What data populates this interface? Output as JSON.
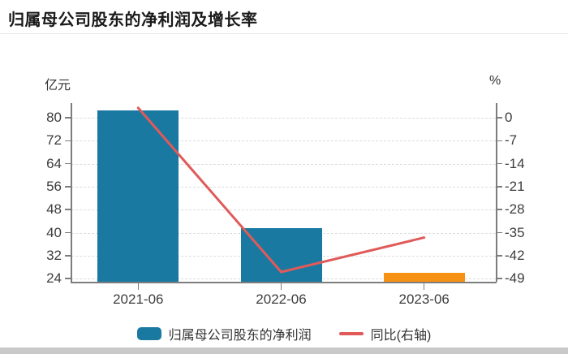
{
  "page": {
    "title": "归属母公司股东的净利润及增长率"
  },
  "colors": {
    "bar_blue": "#1979A1",
    "bar_orange": "#F79114",
    "line_red": "#E15A5A",
    "grid": "#dcdcdc",
    "axis": "#7d7d7d",
    "tick_text": "#3d3d3d",
    "title_text": "#1a1a1a",
    "divider": "#e7e7e7",
    "scrollbar": "#c9c9c9"
  },
  "chart_data": {
    "type": "bar",
    "title": "归属母公司股东的净利润及增长率",
    "categories": [
      "2021-06",
      "2022-06",
      "2023-06"
    ],
    "series": [
      {
        "name": "归属母公司股东的净利润",
        "kind": "bar",
        "axis": "left",
        "unit": "亿元",
        "values": [
          82.5,
          41.5,
          25.9
        ],
        "bar_colors": [
          "#1979A1",
          "#1979A1",
          "#F79114"
        ]
      },
      {
        "name": "同比(右轴)",
        "kind": "line",
        "axis": "right",
        "unit": "%",
        "values": [
          3.0,
          -47.0,
          -36.5
        ],
        "color": "#E15A5A"
      }
    ],
    "left_axis": {
      "label": "亿元",
      "ticks": [
        80,
        72,
        64,
        56,
        48,
        40,
        32,
        24
      ],
      "range": [
        22.9,
        85.1
      ]
    },
    "right_axis": {
      "label": "%",
      "ticks": [
        0,
        -7,
        -14,
        -21,
        -28,
        -35,
        -42,
        -49
      ],
      "range": [
        -50.0,
        4.5
      ]
    },
    "grid": "horizontal-dashed",
    "legend_position": "bottom",
    "legend": [
      "归属母公司股东的净利润",
      "同比(右轴)"
    ]
  }
}
